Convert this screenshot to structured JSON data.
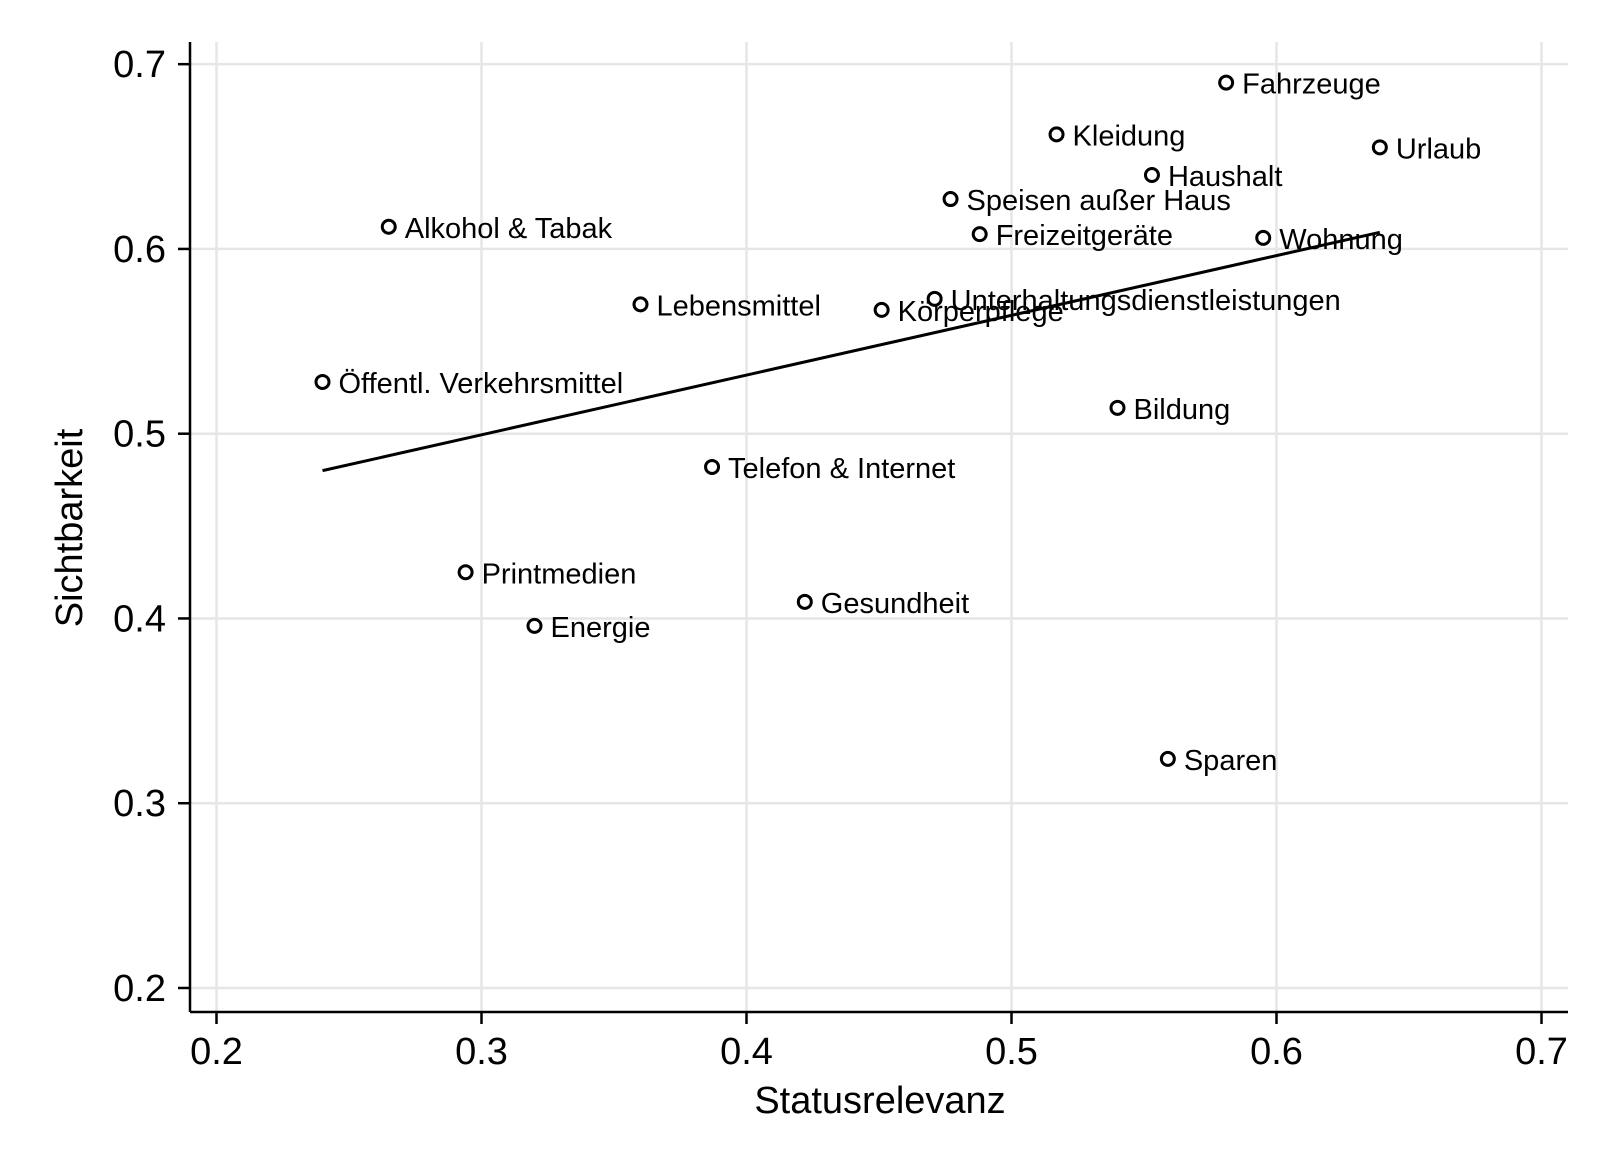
{
  "chart_data": {
    "type": "scatter",
    "xlabel": "Statusrelevanz",
    "ylabel": "Sichtbarkeit",
    "xlim": [
      0.19,
      0.71
    ],
    "ylim": [
      0.187,
      0.712
    ],
    "xticks": [
      0.2,
      0.3,
      0.4,
      0.5,
      0.6,
      0.7
    ],
    "yticks": [
      0.2,
      0.3,
      0.4,
      0.5,
      0.6,
      0.7
    ],
    "xtick_labels": [
      "0.2",
      "0.3",
      "0.4",
      "0.5",
      "0.6",
      "0.7"
    ],
    "ytick_labels": [
      "0.2",
      "0.3",
      "0.4",
      "0.5",
      "0.6",
      "0.7"
    ],
    "grid": true,
    "points": [
      {
        "label": "Fahrzeuge",
        "x": 0.581,
        "y": 0.69
      },
      {
        "label": "Kleidung",
        "x": 0.517,
        "y": 0.662
      },
      {
        "label": "Urlaub",
        "x": 0.639,
        "y": 0.655
      },
      {
        "label": "Haushalt",
        "x": 0.553,
        "y": 0.64
      },
      {
        "label": "Speisen außer Haus",
        "x": 0.477,
        "y": 0.627
      },
      {
        "label": "Alkohol & Tabak",
        "x": 0.265,
        "y": 0.612
      },
      {
        "label": "Freizeitgeräte",
        "x": 0.488,
        "y": 0.608
      },
      {
        "label": "Wohnung",
        "x": 0.595,
        "y": 0.606
      },
      {
        "label": "Unterhaltungsdienstleistungen",
        "x": 0.471,
        "y": 0.573
      },
      {
        "label": "Lebensmittel",
        "x": 0.36,
        "y": 0.57
      },
      {
        "label": "Körperpflege",
        "x": 0.451,
        "y": 0.567
      },
      {
        "label": "Öffentl. Verkehrsmittel",
        "x": 0.24,
        "y": 0.528
      },
      {
        "label": "Bildung",
        "x": 0.54,
        "y": 0.514
      },
      {
        "label": "Telefon & Internet",
        "x": 0.387,
        "y": 0.482
      },
      {
        "label": "Printmedien",
        "x": 0.294,
        "y": 0.425
      },
      {
        "label": "Gesundheit",
        "x": 0.422,
        "y": 0.409
      },
      {
        "label": "Energie",
        "x": 0.32,
        "y": 0.396
      },
      {
        "label": "Sparen",
        "x": 0.559,
        "y": 0.324
      }
    ],
    "fit_line": {
      "x": [
        0.24,
        0.639
      ],
      "y": [
        0.48,
        0.609
      ]
    }
  }
}
